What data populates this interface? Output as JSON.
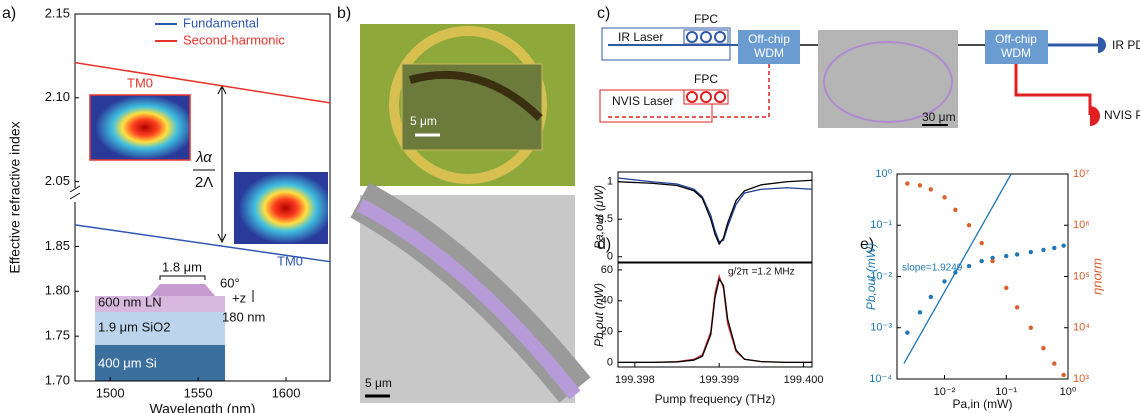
{
  "panel_labels": [
    "a)",
    "b)",
    "c)",
    "d)",
    "e)"
  ],
  "figure_b": {
    "scale_top": "5 μm",
    "scale_bottom": "5 μm"
  },
  "figure_c": {
    "ir_laser": "IR Laser",
    "fpc_1": "FPC",
    "wdm_1": [
      "Off-chip",
      "WDM"
    ],
    "nvis_laser": "NVIS Laser",
    "fpc_2": "FPC",
    "wdm_2": [
      "Off-chip",
      "WDM"
    ],
    "ir_pd": "IR PD",
    "nvis_pd": "NVIS PD",
    "scale": "30 μm"
  },
  "chart_data": [
    {
      "type": "line",
      "xlabel": "Wavelength (nm)",
      "ylabel": "Effective refractive index",
      "xlim": [
        1480,
        1625
      ],
      "xticks": [
        1500,
        1550,
        1600
      ],
      "ylim": [
        1.7,
        2.15
      ],
      "ybreak": [
        1.875,
        2.045
      ],
      "yticks": [
        {
          "value": 1.7,
          "label": "1.70"
        },
        1.75,
        {
          "value": 1.8,
          "label": "1.80"
        },
        1.85,
        2.05,
        {
          "value": 2.1,
          "label": "2.10"
        },
        2.15
      ],
      "legend": "upper right",
      "series": [
        {
          "name": "Fundamental",
          "color": "#2f56b0",
          "x": [
            1480,
            1625
          ],
          "values": [
            1.874,
            1.833
          ]
        },
        {
          "name": "Second-harmonic",
          "color": "#e8342c",
          "x": [
            1480,
            1625
          ],
          "values": [
            2.121,
            2.097
          ]
        }
      ],
      "annotations": [
        "TM0",
        "TM0",
        "λα",
        "2Λ",
        "1.8 μm",
        "60°",
        "600 nm LN",
        "+z",
        "180 nm",
        "1.9 μm SiO2",
        "400 μm Si"
      ]
    },
    {
      "type": "line",
      "ylabel": "Pa,out (μW)",
      "xlim": [
        199.3978,
        199.4001
      ],
      "ylim": [
        -0.07,
        1.13
      ],
      "yticks": [
        0,
        0.5,
        1
      ],
      "x": [
        199.3978,
        199.3982,
        199.3985,
        199.3987,
        199.3988,
        199.3989,
        199.39895,
        199.399,
        199.39905,
        199.3991,
        199.3992,
        199.3993,
        199.3995,
        199.3998,
        199.4001
      ],
      "series": [
        {
          "color": "#1f3f9a",
          "values": [
            1.05,
            1.0,
            0.97,
            0.9,
            0.8,
            0.55,
            0.35,
            0.2,
            0.22,
            0.4,
            0.7,
            0.85,
            0.9,
            0.92,
            0.9
          ]
        },
        {
          "color": "#000000",
          "values": [
            1.0,
            0.98,
            0.95,
            0.88,
            0.78,
            0.5,
            0.3,
            0.17,
            0.25,
            0.45,
            0.75,
            0.88,
            0.96,
            1.0,
            1.02
          ]
        }
      ]
    },
    {
      "type": "line",
      "xlabel": "Pump frequency (THz)",
      "ylabel": "Pb,out (nW)",
      "xlim": [
        199.3978,
        199.4001
      ],
      "xticks": [
        199.398,
        199.399,
        {
          "value": 199.4,
          "label": "199.400"
        }
      ],
      "ylim": [
        -3,
        64.5
      ],
      "yticks": [
        0,
        20,
        40,
        60
      ],
      "x": [
        199.3978,
        199.3982,
        199.3985,
        199.3987,
        199.3988,
        199.3989,
        199.39895,
        199.399,
        199.39905,
        199.3991,
        199.3992,
        199.3993,
        199.3995,
        199.3998,
        199.4001
      ],
      "series": [
        {
          "color": "#d9363e",
          "values": [
            0,
            0,
            0.5,
            2,
            5,
            20,
            45,
            56,
            48,
            25,
            7,
            2,
            0.5,
            0,
            0
          ]
        },
        {
          "color": "#000000",
          "values": [
            0,
            0,
            0.3,
            1.5,
            4,
            18,
            42,
            54,
            50,
            28,
            8,
            2,
            0.5,
            0,
            0
          ]
        }
      ],
      "annotations": [
        "g/2π =1.2 MHz"
      ]
    },
    {
      "type": "scatter",
      "xlabel": "Pa,in (mW)",
      "ylabel": "Pb,out (mW)",
      "y2label": "ηnorm",
      "xlog": true,
      "ylog": true,
      "y2log": true,
      "xlim": [
        0.0017,
        1
      ],
      "ylim": [
        0.0001,
        1
      ],
      "y2lim": [
        1000,
        10000000
      ],
      "xticks": [
        {
          "value": 0.01,
          "label": "10⁻²"
        },
        {
          "value": 0.1,
          "label": "10⁻¹"
        },
        {
          "value": 1,
          "label": "10⁰"
        }
      ],
      "yticks": [
        {
          "value": 0.0001,
          "label": "10⁻⁴"
        },
        {
          "value": 0.001,
          "label": "10⁻³"
        },
        {
          "value": 0.01,
          "label": "10⁻²"
        },
        {
          "value": 0.1,
          "label": "10⁻¹"
        },
        {
          "value": 1,
          "label": "10⁰"
        }
      ],
      "y2ticks": [
        {
          "value": 1000,
          "label": "10³"
        },
        {
          "value": 10000,
          "label": "10⁴"
        },
        {
          "value": 100000,
          "label": "10⁵"
        },
        {
          "value": 1000000,
          "label": "10⁶"
        },
        {
          "value": 10000000,
          "label": "10⁷"
        }
      ],
      "x": [
        0.0025,
        0.004,
        0.006,
        0.01,
        0.015,
        0.025,
        0.04,
        0.06,
        0.1,
        0.15,
        0.25,
        0.4,
        0.6,
        0.85
      ],
      "series": [
        {
          "color": "#1f77b4",
          "values": [
            0.0008,
            0.002,
            0.004,
            0.008,
            0.012,
            0.016,
            0.02,
            0.023,
            0.025,
            0.027,
            0.03,
            0.033,
            0.036,
            0.04
          ]
        },
        {
          "color": "#d95f2b",
          "axis": "y2",
          "values": [
            6500000,
            6000000,
            5000000,
            3500000,
            2000000,
            1000000,
            450000,
            200000,
            60000,
            25000,
            10000,
            4000,
            2000,
            1200
          ]
        },
        {
          "color": "#1f77b4",
          "style": "line",
          "x": [
            0.0022,
            0.12
          ],
          "values": [
            0.0002,
            1
          ]
        }
      ],
      "annotations": [
        "slope=1.9249"
      ]
    }
  ]
}
